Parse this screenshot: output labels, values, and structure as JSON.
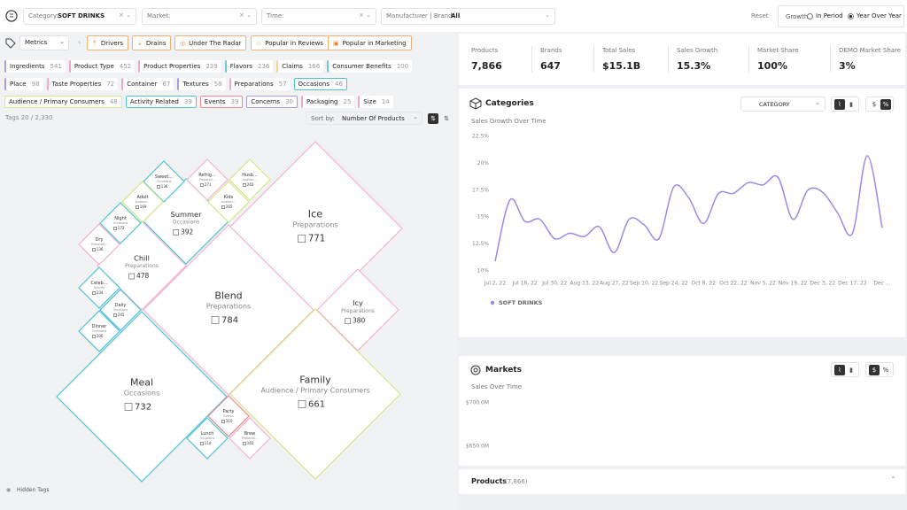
{
  "filters": {
    "category_label": "Category:",
    "category_value": "SOFT DRINKS",
    "market_label": "Market:",
    "time_label": "Time:",
    "manufacturer_label": "Manufacturer | Brand:",
    "manufacturer_value": "All",
    "reset": "Reset",
    "growth_label": "Growth",
    "growth_options": [
      "In Period",
      "Year Over Year"
    ],
    "growth_selected": 1
  },
  "toolbar": {
    "metrics": "Metrics",
    "buttons": [
      "Drivers",
      "Drains",
      "Under The Radar",
      "Popular in Reviews",
      "Popular in Marketing"
    ]
  },
  "tag_groups": [
    [
      {
        "name": "Ingredients",
        "count": "541",
        "color": "#a99be6"
      },
      {
        "name": "Product Type",
        "count": "452",
        "color": "#f0a8c8"
      },
      {
        "name": "Product Properties",
        "count": "239",
        "color": "#f0a8c8"
      },
      {
        "name": "Flavors",
        "count": "236",
        "color": "#6cc9dc"
      },
      {
        "name": "Claims",
        "count": "166",
        "color": "#f2d58a"
      },
      {
        "name": "Consumer Benefits",
        "count": "100",
        "color": "#6cc9dc"
      }
    ],
    [
      {
        "name": "Place",
        "count": "98",
        "color": "#a99be6"
      },
      {
        "name": "Taste Properties",
        "count": "72",
        "color": "#f0a8c8"
      },
      {
        "name": "Container",
        "count": "67",
        "color": "#f0a8c8"
      },
      {
        "name": "Textures",
        "count": "58",
        "color": "#a99be6"
      },
      {
        "name": "Preparations",
        "count": "57",
        "color": "#f0a8c8"
      },
      {
        "name": "Occasions",
        "count": "46",
        "color": "#4fc3d6",
        "selected": true
      }
    ],
    [
      {
        "name": "Audience / Primary Consumers",
        "count": "48",
        "color": "#d6e888",
        "selected": true
      },
      {
        "name": "Activity Related",
        "count": "39",
        "color": "#4fc3d6",
        "selected": true
      },
      {
        "name": "Events",
        "count": "39",
        "color": "#f08a8a",
        "selected": true
      },
      {
        "name": "Concerns",
        "count": "30",
        "color": "#a99be6",
        "selected": true
      },
      {
        "name": "Packaging",
        "count": "25",
        "color": "#f0a8c8"
      },
      {
        "name": "Size",
        "count": "14",
        "color": "#f0a8c8"
      }
    ]
  ],
  "tags_summary": "Tags 20 / 2,330",
  "sort_label": "Sort by:",
  "sort_value": "Number Of Products",
  "tags": [
    {
      "name": "Ice",
      "group": "Preparations",
      "count": "771",
      "color": "#f2b3cf"
    },
    {
      "name": "Blend",
      "group": "Preparations",
      "count": "784",
      "color": "#f2b3cf"
    },
    {
      "name": "Meal",
      "group": "Occasions",
      "count": "732",
      "color": "#4fc3d6"
    },
    {
      "name": "Family",
      "group": "Audience / Primary Consumers",
      "count": "661",
      "color": "#d6e888"
    },
    {
      "name": "Chill",
      "group": "Preparations",
      "count": "478",
      "color": "#f2b3cf"
    },
    {
      "name": "Summer",
      "group": "Occasions",
      "count": "392",
      "color": "#4fc3d6"
    },
    {
      "name": "Icy",
      "group": "Preparations",
      "count": "380",
      "color": "#f2b3cf"
    },
    {
      "name": "Sweet...",
      "group": "Occasions",
      "count": "136",
      "color": "#4fc3d6"
    },
    {
      "name": "Refrig...",
      "group": "Preparati...",
      "count": "271",
      "color": "#f2b3cf"
    },
    {
      "name": "Husb...",
      "group": "Audienc...",
      "count": "265",
      "color": "#d6e888"
    },
    {
      "name": "Kids",
      "group": "Audienc...",
      "count": "265",
      "color": "#d6e888"
    },
    {
      "name": "Adult",
      "group": "Audienc...",
      "count": "169",
      "color": "#d6e888"
    },
    {
      "name": "Night",
      "group": "Occasions",
      "count": "172",
      "color": "#4fc3d6"
    },
    {
      "name": "Dry",
      "group": "Preparati...",
      "count": "136",
      "color": "#f2b3cf"
    },
    {
      "name": "Celeb...",
      "group": "Activity",
      "count": "234",
      "color": "#4fc3d6"
    },
    {
      "name": "Daily",
      "group": "Occasions",
      "count": "245",
      "color": "#4fc3d6"
    },
    {
      "name": "Dinner",
      "group": "Occasions",
      "count": "200",
      "color": "#4fc3d6"
    },
    {
      "name": "Party",
      "group": "Events",
      "count": "310",
      "color": "#f08a8a"
    },
    {
      "name": "Lunch",
      "group": "Occasions",
      "count": "114",
      "color": "#4fc3d6"
    },
    {
      "name": "Brew",
      "group": "Preparati...",
      "count": "165",
      "color": "#f2b3cf"
    }
  ],
  "hidden_tags": "Hidden Tags",
  "kpis": [
    {
      "label": "Products",
      "value": "7,866"
    },
    {
      "label": "Brands",
      "value": "647"
    },
    {
      "label": "Total Sales",
      "value": "$15.1B"
    },
    {
      "label": "Sales Growth",
      "value": "15.3%"
    },
    {
      "label": "Market Share",
      "value": "100%"
    },
    {
      "label": "DEMO Market Share",
      "value": "3%"
    }
  ],
  "categories_panel": {
    "title": "Categories",
    "dropdown": "CATEGORY",
    "toggles": [
      "$",
      "%"
    ]
  },
  "markets_panel": {
    "title": "Markets",
    "toggles": [
      "$",
      "%"
    ]
  },
  "products_panel": {
    "title": "Products",
    "count": "(7,866)"
  },
  "chart_data": [
    {
      "type": "line",
      "title": "Sales Growth Over Time",
      "categories": [
        "Jul 2, 22",
        null,
        "Jul 16, 22",
        null,
        "Jul 30, 22",
        null,
        "Aug 13, 22",
        null,
        "Aug 27, 22",
        null,
        "Sep 10, 22",
        null,
        "Sep 24, 22",
        null,
        "Oct 8, 22",
        null,
        "Oct 22, 22",
        null,
        "Nov 5, 22",
        null,
        "Nov 19, 22",
        null,
        "Dec 3, 22",
        null,
        "Dec 17, 22",
        null,
        "Dec ..."
      ],
      "series": [
        {
          "name": "SOFT DRINKS",
          "color": "#9a8be3",
          "values": [
            10.9,
            16.6,
            14.6,
            14.8,
            13.0,
            13.5,
            13.2,
            14.1,
            11.7,
            14.8,
            14.3,
            13.0,
            17.8,
            16.8,
            14.4,
            17.2,
            17.2,
            18.2,
            18.0,
            18.7,
            14.8,
            17.5,
            17.3,
            15.4,
            13.5,
            20.7,
            14.0
          ]
        }
      ],
      "ylim": [
        10,
        22.5
      ],
      "yticks": [
        {
          "value": 10,
          "label": "10%"
        },
        {
          "value": 12.5,
          "label": "12.5%"
        },
        {
          "value": 15,
          "label": "15%"
        },
        {
          "value": 17.5,
          "label": "17.5%"
        },
        {
          "value": 20,
          "label": "20%"
        },
        {
          "value": 22.5,
          "label": "22.5%"
        }
      ],
      "grid": false
    },
    {
      "type": "line",
      "title": "Sales Over Time",
      "ylim": [
        610,
        710
      ],
      "yticks": [
        {
          "value": 650,
          "label": "$650.0M"
        },
        {
          "value": 700,
          "label": "$700.0M"
        }
      ],
      "grid": false
    }
  ]
}
